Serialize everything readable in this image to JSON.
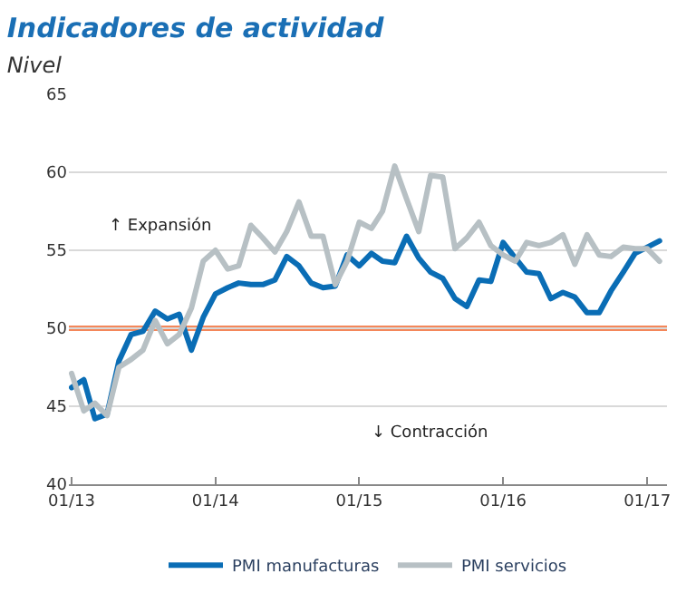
{
  "chart_data": {
    "type": "line",
    "title": "Indicadores de actividad",
    "subtitle": "Nivel",
    "x": [
      "2013-01",
      "2013-02",
      "2013-03",
      "2013-04",
      "2013-05",
      "2013-06",
      "2013-07",
      "2013-08",
      "2013-09",
      "2013-10",
      "2013-11",
      "2013-12",
      "2014-01",
      "2014-02",
      "2014-03",
      "2014-04",
      "2014-05",
      "2014-06",
      "2014-07",
      "2014-08",
      "2014-09",
      "2014-10",
      "2014-11",
      "2014-12",
      "2015-01",
      "2015-02",
      "2015-03",
      "2015-04",
      "2015-05",
      "2015-06",
      "2015-07",
      "2015-08",
      "2015-09",
      "2015-10",
      "2015-11",
      "2015-12",
      "2016-01",
      "2016-02",
      "2016-03",
      "2016-04",
      "2016-05",
      "2016-06",
      "2016-07",
      "2016-08",
      "2016-09",
      "2016-10",
      "2016-11",
      "2016-12",
      "2017-01",
      "2017-02"
    ],
    "series": [
      {
        "name": "PMI manufacturas",
        "color": "#0a6db5",
        "values": [
          46.2,
          46.7,
          44.2,
          44.5,
          47.9,
          49.6,
          49.8,
          51.1,
          50.6,
          50.9,
          48.6,
          50.7,
          52.2,
          52.6,
          52.9,
          52.8,
          52.8,
          53.1,
          54.6,
          54.0,
          52.9,
          52.6,
          52.7,
          54.7,
          54.0,
          54.8,
          54.3,
          54.2,
          55.9,
          54.5,
          53.6,
          53.2,
          51.9,
          51.4,
          53.1,
          53.0,
          55.5,
          54.5,
          53.6,
          53.5,
          51.9,
          52.3,
          52.0,
          51.0,
          51.0,
          52.4,
          53.6,
          54.8,
          55.2,
          55.6
        ]
      },
      {
        "name": "PMI servicios",
        "color": "#b7c0c4",
        "values": [
          47.1,
          44.7,
          45.2,
          44.4,
          47.5,
          48.0,
          48.6,
          50.5,
          49.0,
          49.6,
          51.3,
          54.3,
          55.0,
          53.8,
          54.0,
          56.6,
          55.8,
          54.9,
          56.2,
          58.1,
          55.9,
          55.9,
          52.8,
          54.3,
          56.8,
          56.4,
          57.5,
          60.4,
          58.3,
          56.2,
          59.8,
          59.7,
          55.1,
          55.8,
          56.8,
          55.3,
          54.7,
          54.3,
          55.5,
          55.3,
          55.5,
          56.0,
          54.1,
          56.0,
          54.7,
          54.6,
          55.2,
          55.1,
          55.1,
          54.3
        ]
      }
    ],
    "xlim": [
      "2012-12-25",
      "2017-02-20"
    ],
    "xticks": [
      {
        "value": "2013-01",
        "label": "01/13"
      },
      {
        "value": "2014-01",
        "label": "01/14"
      },
      {
        "value": "2015-01",
        "label": "01/15"
      },
      {
        "value": "2016-01",
        "label": "01/16"
      },
      {
        "value": "2017-01",
        "label": "01/17"
      }
    ],
    "ylim": [
      40,
      65
    ],
    "yticks": [
      40,
      45,
      50,
      55,
      60,
      65
    ],
    "grid": "y",
    "legend": "bottom",
    "marker": "none",
    "line_style": "solid",
    "ref_lines": [
      {
        "axis": "y",
        "value": 50,
        "color": "#f4875a",
        "line_style": "solid"
      }
    ],
    "annotations": [
      "↑ Expansión",
      "↓ Contracción"
    ]
  }
}
